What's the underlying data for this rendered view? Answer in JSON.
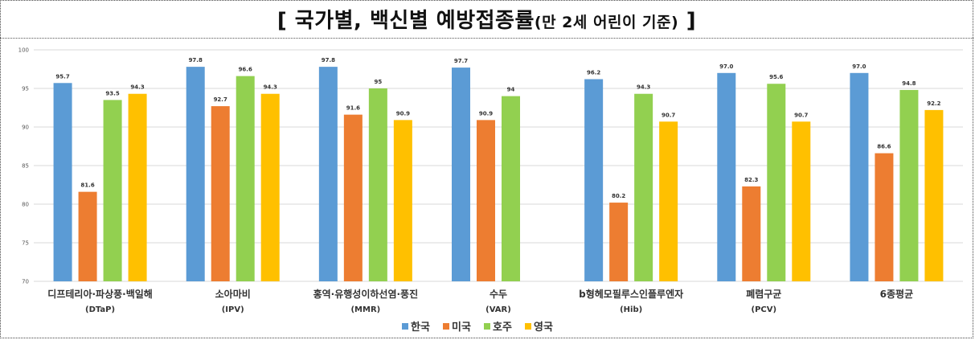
{
  "title": {
    "main": "[ 국가별, 백신별 예방접종률",
    "sub": "(만 2세 어린이 기준)",
    "close": " ]"
  },
  "chart_data": {
    "type": "bar",
    "ylim": [
      70,
      100
    ],
    "yticks": [
      70,
      75,
      80,
      85,
      90,
      95,
      100
    ],
    "grid": true,
    "legend_position": "bottom",
    "categories": [
      {
        "name": "디프테리아·파상풍·백일해",
        "code": "(DTaP)"
      },
      {
        "name": "소아마비",
        "code": "(IPV)"
      },
      {
        "name": "홍역·유행성이하선염·풍진",
        "code": "(MMR)"
      },
      {
        "name": "수두",
        "code": "(VAR)"
      },
      {
        "name": "b형헤모필루스인플루엔자",
        "code": "(Hib)"
      },
      {
        "name": "폐렴구균",
        "code": "(PCV)"
      },
      {
        "name": "6종평균",
        "code": ""
      }
    ],
    "series": [
      {
        "name": "한국",
        "color": "#5b9bd5",
        "values": [
          95.7,
          97.8,
          97.8,
          97.7,
          96.2,
          97.0,
          97.0
        ],
        "labels": [
          "95.7",
          "97.8",
          "97.8",
          "97.7",
          "96.2",
          "97.0",
          "97.0"
        ]
      },
      {
        "name": "미국",
        "color": "#ed7d31",
        "values": [
          81.6,
          92.7,
          91.6,
          90.9,
          80.2,
          82.3,
          86.6
        ],
        "labels": [
          "81.6",
          "92.7",
          "91.6",
          "90.9",
          "80.2",
          "82.3",
          "86.6"
        ]
      },
      {
        "name": "호주",
        "color": "#92d050",
        "values": [
          93.5,
          96.6,
          95,
          94,
          94.3,
          95.6,
          94.8
        ],
        "labels": [
          "93.5",
          "96.6",
          "95",
          "94",
          "94.3",
          "95.6",
          "94.8"
        ]
      },
      {
        "name": "영국",
        "color": "#ffc000",
        "values": [
          94.3,
          94.3,
          90.9,
          null,
          90.7,
          90.7,
          92.2
        ],
        "labels": [
          "94.3",
          "94.3",
          "90.9",
          "",
          "90.7",
          "90.7",
          "92.2"
        ]
      }
    ]
  }
}
